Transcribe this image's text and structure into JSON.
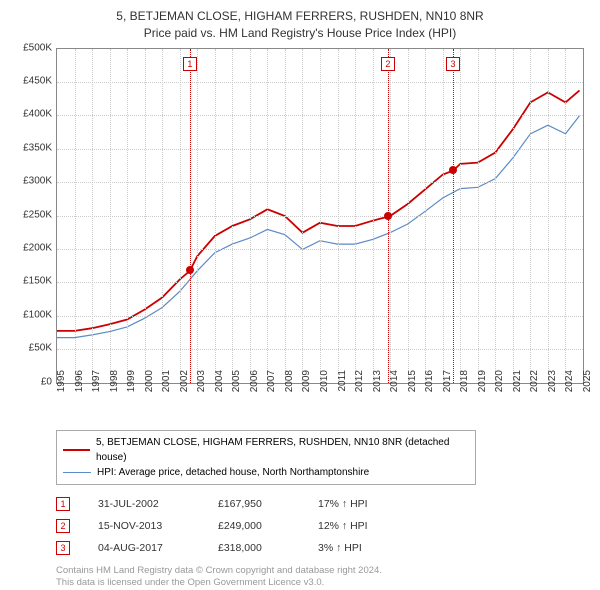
{
  "title": {
    "line1": "5, BETJEMAN CLOSE, HIGHAM FERRERS, RUSHDEN, NN10 8NR",
    "line2": "Price paid vs. HM Land Registry's House Price Index (HPI)"
  },
  "chart": {
    "type": "line",
    "background_color": "#ffffff",
    "grid_color": "#cccccc",
    "axis_color": "#888888",
    "text_color": "#333333",
    "label_fontsize": 10,
    "title_fontsize": 12,
    "ylim": [
      0,
      500000
    ],
    "ytick_step": 50000,
    "yticks": [
      "£0",
      "£50K",
      "£100K",
      "£150K",
      "£200K",
      "£250K",
      "£300K",
      "£350K",
      "£400K",
      "£450K",
      "£500K"
    ],
    "xlim": [
      1995,
      2025
    ],
    "xticks": [
      1995,
      1996,
      1997,
      1998,
      1999,
      2000,
      2001,
      2002,
      2003,
      2004,
      2005,
      2006,
      2007,
      2008,
      2009,
      2010,
      2011,
      2012,
      2013,
      2014,
      2015,
      2016,
      2017,
      2018,
      2019,
      2020,
      2021,
      2022,
      2023,
      2024,
      2025
    ],
    "series": [
      {
        "name": "property",
        "label": "5, BETJEMAN CLOSE, HIGHAM FERRERS, RUSHDEN, NN10 8NR (detached house)",
        "color": "#cc0000",
        "line_width": 1.8,
        "data": [
          [
            1995,
            78000
          ],
          [
            1996,
            78000
          ],
          [
            1997,
            82000
          ],
          [
            1998,
            88000
          ],
          [
            1999,
            95000
          ],
          [
            2000,
            110000
          ],
          [
            2001,
            128000
          ],
          [
            2002,
            155000
          ],
          [
            2002.58,
            167950
          ],
          [
            2003,
            190000
          ],
          [
            2004,
            220000
          ],
          [
            2005,
            235000
          ],
          [
            2006,
            245000
          ],
          [
            2007,
            260000
          ],
          [
            2008,
            250000
          ],
          [
            2009,
            225000
          ],
          [
            2010,
            240000
          ],
          [
            2011,
            235000
          ],
          [
            2012,
            235000
          ],
          [
            2013,
            243000
          ],
          [
            2013.87,
            249000
          ],
          [
            2014,
            250000
          ],
          [
            2015,
            268000
          ],
          [
            2016,
            290000
          ],
          [
            2017,
            312000
          ],
          [
            2017.59,
            318000
          ],
          [
            2018,
            328000
          ],
          [
            2019,
            330000
          ],
          [
            2020,
            345000
          ],
          [
            2021,
            380000
          ],
          [
            2022,
            420000
          ],
          [
            2023,
            435000
          ],
          [
            2024,
            420000
          ],
          [
            2024.8,
            438000
          ]
        ]
      },
      {
        "name": "hpi",
        "label": "HPI: Average price, detached house, North Northamptonshire",
        "color": "#5b8bc9",
        "line_width": 1.2,
        "data": [
          [
            1995,
            68000
          ],
          [
            1996,
            68000
          ],
          [
            1997,
            72000
          ],
          [
            1998,
            77000
          ],
          [
            1999,
            84000
          ],
          [
            2000,
            97000
          ],
          [
            2001,
            113000
          ],
          [
            2002,
            137000
          ],
          [
            2003,
            168000
          ],
          [
            2004,
            195000
          ],
          [
            2005,
            208000
          ],
          [
            2006,
            217000
          ],
          [
            2007,
            230000
          ],
          [
            2008,
            222000
          ],
          [
            2009,
            200000
          ],
          [
            2010,
            213000
          ],
          [
            2011,
            208000
          ],
          [
            2012,
            208000
          ],
          [
            2013,
            215000
          ],
          [
            2014,
            225000
          ],
          [
            2015,
            238000
          ],
          [
            2016,
            257000
          ],
          [
            2017,
            277000
          ],
          [
            2018,
            291000
          ],
          [
            2019,
            293000
          ],
          [
            2020,
            306000
          ],
          [
            2021,
            337000
          ],
          [
            2022,
            373000
          ],
          [
            2023,
            386000
          ],
          [
            2024,
            373000
          ],
          [
            2024.8,
            400000
          ]
        ]
      }
    ],
    "markers": [
      {
        "id": "1",
        "x": 2002.58,
        "y": 167950,
        "label_top": 8
      },
      {
        "id": "2",
        "x": 2013.87,
        "y": 249000,
        "label_top": 8
      },
      {
        "id": "3",
        "x": 2017.59,
        "y": 318000,
        "label_top": 8
      }
    ],
    "marker_line_color": "#cc0000",
    "marker_dot_color": "#cc0000"
  },
  "legend": {
    "items": [
      {
        "color": "#cc0000",
        "height": 2,
        "text": "5, BETJEMAN CLOSE, HIGHAM FERRERS, RUSHDEN, NN10 8NR (detached house)"
      },
      {
        "color": "#5b8bc9",
        "height": 1,
        "text": "HPI: Average price, detached house, North Northamptonshire"
      }
    ]
  },
  "sales": [
    {
      "id": "1",
      "date": "31-JUL-2002",
      "price": "£167,950",
      "pct": "17% ↑ HPI"
    },
    {
      "id": "2",
      "date": "15-NOV-2013",
      "price": "£249,000",
      "pct": "12% ↑ HPI"
    },
    {
      "id": "3",
      "date": "04-AUG-2017",
      "price": "£318,000",
      "pct": "3% ↑ HPI"
    }
  ],
  "footer": {
    "line1": "Contains HM Land Registry data © Crown copyright and database right 2024.",
    "line2": "This data is licensed under the Open Government Licence v3.0."
  }
}
